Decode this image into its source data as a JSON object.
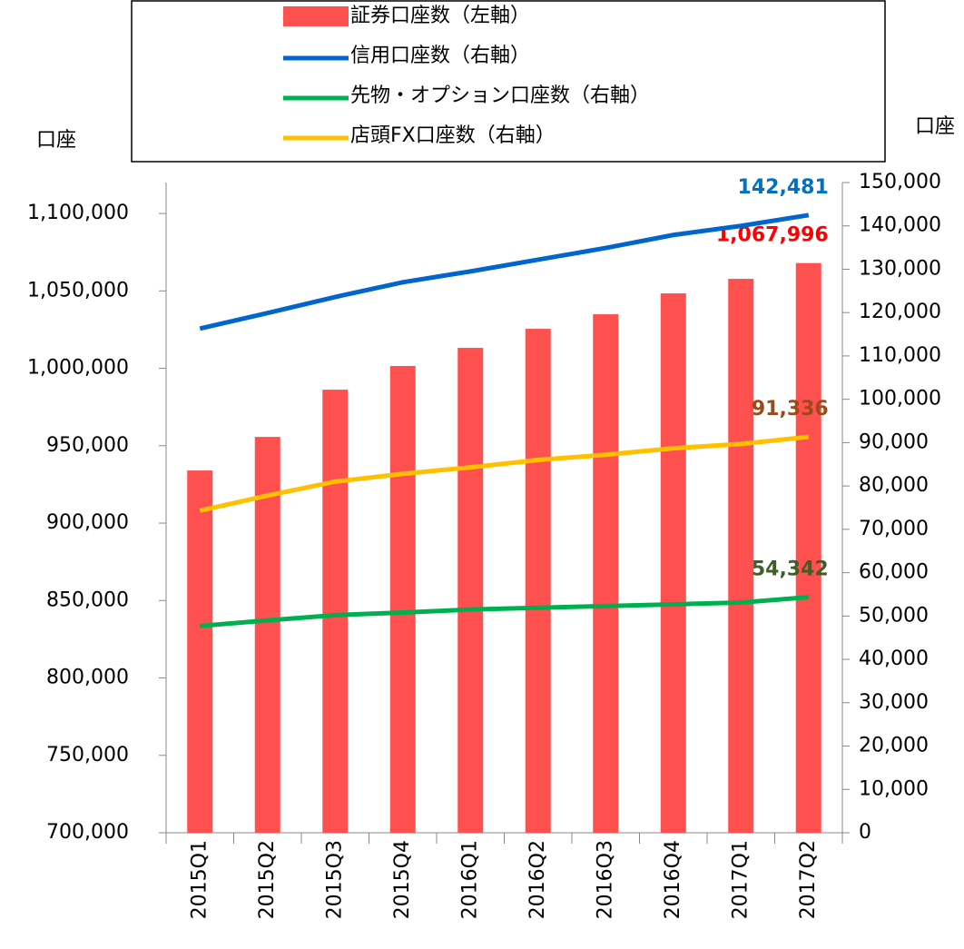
{
  "chart_data": {
    "type": "bar_line",
    "ylabel": "口座",
    "y2label": "口座",
    "categories": [
      "2015Q1",
      "2015Q2",
      "2015Q3",
      "2015Q4",
      "2016Q1",
      "2016Q2",
      "2016Q3",
      "2016Q4",
      "2017Q1",
      "2017Q2"
    ],
    "series": [
      {
        "name": "証券口座数（左軸）",
        "type": "bar",
        "color": "#ff5050",
        "label_color": "#ff0000",
        "axis": "y",
        "values": [
          934000,
          955700,
          986200,
          1001500,
          1013200,
          1025500,
          1034900,
          1048400,
          1057800,
          1067996
        ],
        "value_labels": [
          null,
          null,
          null,
          null,
          null,
          null,
          null,
          null,
          null,
          "1,067,996"
        ]
      },
      {
        "name": "信用口座数（右軸）",
        "type": "line",
        "color": "#0066cc",
        "label_color": "#0070c0",
        "axis": "y2",
        "values": [
          116300,
          119900,
          123600,
          127000,
          129500,
          132200,
          134900,
          137900,
          140000,
          142481
        ],
        "value_labels": [
          null,
          null,
          null,
          null,
          null,
          null,
          null,
          null,
          null,
          "142,481"
        ]
      },
      {
        "name": "先物・オプション口座数（右軸）",
        "type": "line",
        "color": "#00b050",
        "label_color": "#3f5f2a",
        "axis": "y2",
        "values": [
          47700,
          49000,
          50200,
          50800,
          51500,
          51900,
          52300,
          52700,
          53100,
          54342
        ],
        "value_labels": [
          null,
          null,
          null,
          null,
          null,
          null,
          null,
          null,
          null,
          "54,342"
        ]
      },
      {
        "name": "店頭FX口座数（右軸）",
        "type": "line",
        "color": "#ffc000",
        "label_color": "#9c4a1a",
        "axis": "y2",
        "values": [
          74300,
          77800,
          81000,
          82800,
          84300,
          86000,
          87200,
          88700,
          89700,
          91336
        ],
        "value_labels": [
          null,
          null,
          null,
          null,
          null,
          null,
          null,
          null,
          null,
          "91,336"
        ]
      }
    ],
    "ylim": [
      700000,
      1120000
    ],
    "yticks": [
      {
        "value": 700000,
        "label": "700,000"
      },
      {
        "value": 750000,
        "label": "750,000"
      },
      {
        "value": 800000,
        "label": "800,000"
      },
      {
        "value": 850000,
        "label": "850,000"
      },
      {
        "value": 900000,
        "label": "900,000"
      },
      {
        "value": 950000,
        "label": "950,000"
      },
      {
        "value": 1000000,
        "label": "1,000,000"
      },
      {
        "value": 1050000,
        "label": "1,050,000"
      },
      {
        "value": 1100000,
        "label": "1,100,000"
      }
    ],
    "y2lim": [
      0,
      150000
    ],
    "y2ticks": [
      0,
      {
        "value": 10000,
        "label": "10,000"
      },
      {
        "value": 20000,
        "label": "20,000"
      },
      {
        "value": 30000,
        "label": "30,000"
      },
      {
        "value": 40000,
        "label": "40,000"
      },
      {
        "value": 50000,
        "label": "50,000"
      },
      {
        "value": 60000,
        "label": "60,000"
      },
      {
        "value": 70000,
        "label": "70,000"
      },
      {
        "value": 80000,
        "label": "80,000"
      },
      {
        "value": 90000,
        "label": "90,000"
      },
      {
        "value": 100000,
        "label": "100,000"
      },
      {
        "value": 110000,
        "label": "110,000"
      },
      {
        "value": 120000,
        "label": "120,000"
      },
      {
        "value": 130000,
        "label": "130,000"
      },
      {
        "value": 140000,
        "label": "140,000"
      },
      {
        "value": 150000,
        "label": "150,000"
      }
    ]
  }
}
